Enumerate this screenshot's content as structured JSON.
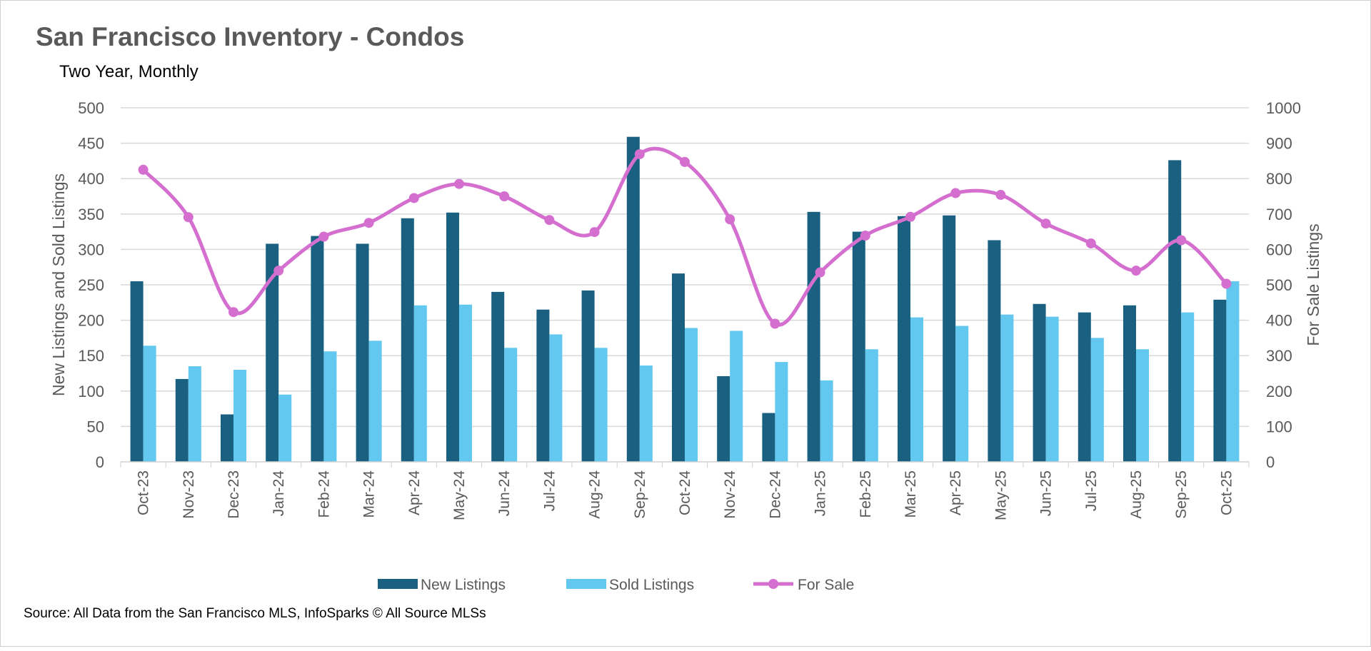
{
  "chart_data": {
    "type": "bar+line",
    "title": "San Francisco Inventory - Condos",
    "subtitle": "Two Year, Monthly",
    "ylabel": "New Listings and Sold Listings",
    "y2label": "For Sale Listings",
    "ylim": [
      0,
      500
    ],
    "y2lim": [
      0,
      1000
    ],
    "yticks": [
      0,
      50,
      100,
      150,
      200,
      250,
      300,
      350,
      400,
      450,
      500
    ],
    "y2ticks": [
      0,
      100,
      200,
      300,
      400,
      500,
      600,
      700,
      800,
      900,
      1000
    ],
    "grid": true,
    "legend_position": "bottom",
    "source": "Source: All Data from the San Francisco MLS, InfoSparks © All Source MLSs",
    "categories": [
      "Oct-23",
      "Nov-23",
      "Dec-23",
      "Jan-24",
      "Feb-24",
      "Mar-24",
      "Apr-24",
      "May-24",
      "Jun-24",
      "Jul-24",
      "Aug-24",
      "Sep-24",
      "Oct-24",
      "Nov-24",
      "Dec-24",
      "Jan-25",
      "Feb-25",
      "Mar-25",
      "Apr-25",
      "May-25",
      "Jun-25",
      "Jul-25",
      "Aug-25",
      "Sep-25",
      "Oct-25"
    ],
    "series": [
      {
        "name": "New Listings",
        "type": "bar",
        "axis": "left",
        "color": "#1a6080",
        "values": [
          255,
          117,
          67,
          308,
          319,
          308,
          344,
          352,
          240,
          215,
          242,
          459,
          266,
          121,
          69,
          353,
          325,
          347,
          348,
          313,
          223,
          211,
          221,
          426,
          229
        ]
      },
      {
        "name": "Sold Listings",
        "type": "bar",
        "axis": "left",
        "color": "#62c8f0",
        "values": [
          164,
          135,
          130,
          95,
          156,
          171,
          221,
          222,
          161,
          180,
          161,
          136,
          189,
          185,
          141,
          115,
          159,
          204,
          192,
          208,
          205,
          175,
          159,
          211,
          255
        ]
      },
      {
        "name": "For Sale",
        "type": "line",
        "axis": "right",
        "color": "#d46fcf",
        "values": [
          825,
          691,
          423,
          540,
          636,
          675,
          745,
          785,
          750,
          683,
          649,
          869,
          847,
          685,
          390,
          535,
          639,
          692,
          759,
          754,
          673,
          617,
          540,
          626,
          503
        ]
      }
    ]
  }
}
